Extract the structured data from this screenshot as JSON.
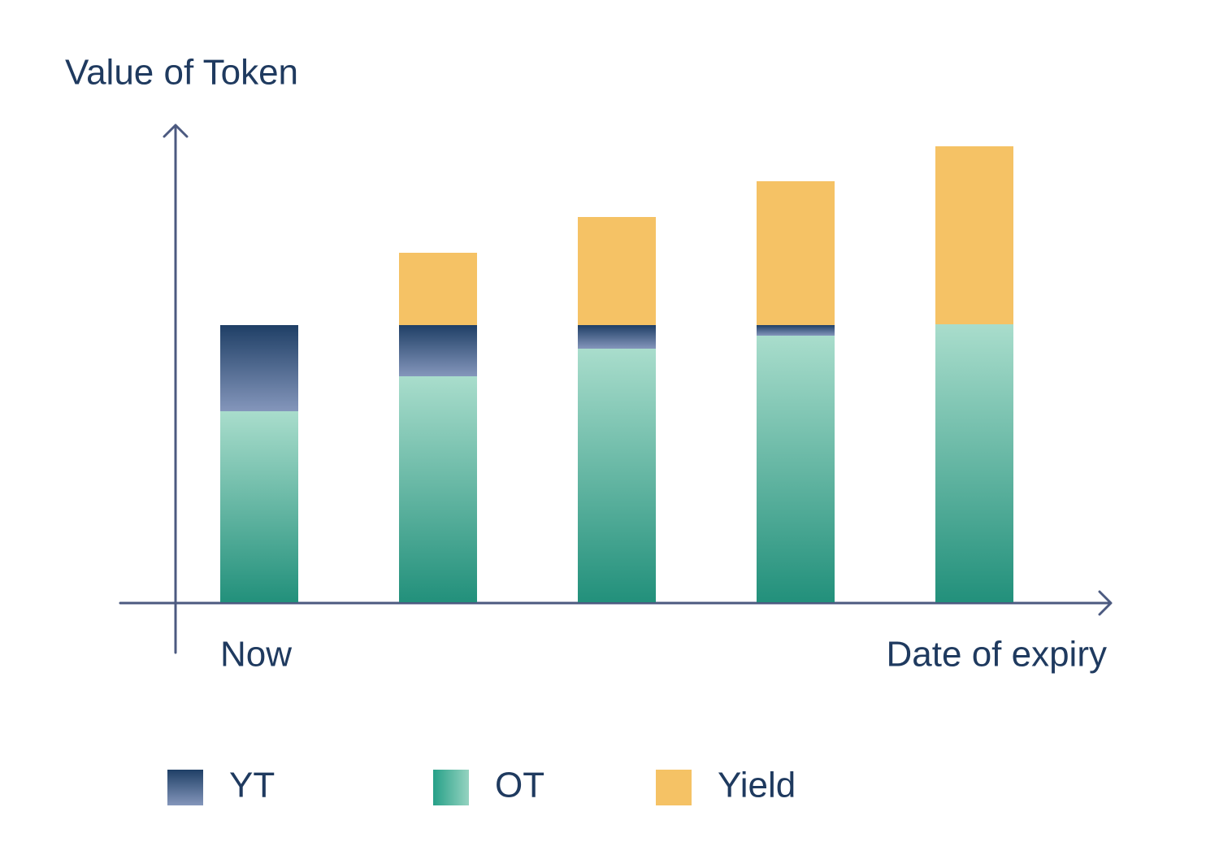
{
  "chart_data": {
    "type": "stacked_bar",
    "title": "Value of Token",
    "categories": [
      "Now",
      null,
      null,
      null,
      "Date of expiry"
    ],
    "series": [
      {
        "name": "YT",
        "color": "#1f3f66",
        "values": [
          106,
          63,
          29,
          13,
          0
        ]
      },
      {
        "name": "OT",
        "color": "#2a9680",
        "values": [
          235,
          278,
          312,
          328,
          342
        ]
      },
      {
        "name": "Yield",
        "color": "#f5c265",
        "values": [
          0,
          89,
          133,
          177,
          219
        ]
      }
    ],
    "ylim": [
      0,
      600
    ]
  }
}
